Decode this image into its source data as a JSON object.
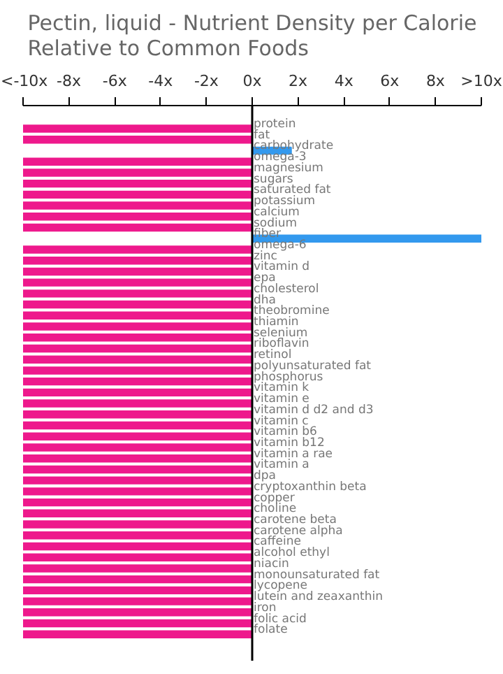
{
  "chart_data": {
    "type": "bar",
    "orientation": "horizontal",
    "title": "Pectin, liquid - Nutrient Density per Calorie\nRelative to Common Foods",
    "categories": [
      "protein",
      "fat",
      "carbohydrate",
      "omega-3",
      "magnesium",
      "sugars",
      "saturated fat",
      "potassium",
      "calcium",
      "sodium",
      "fiber",
      "omega-6",
      "zinc",
      "vitamin d",
      "epa",
      "cholesterol",
      "dha",
      "theobromine",
      "thiamin",
      "selenium",
      "riboflavin",
      "retinol",
      "polyunsaturated fat",
      "phosphorus",
      "vitamin k",
      "vitamin e",
      "vitamin d d2 and d3",
      "vitamin c",
      "vitamin b6",
      "vitamin b12",
      "vitamin a rae",
      "vitamin a",
      "dpa",
      "cryptoxanthin beta",
      "copper",
      "choline",
      "carotene beta",
      "carotene alpha",
      "caffeine",
      "alcohol ethyl",
      "niacin",
      "monounsaturated fat",
      "lycopene",
      "lutein and zeaxanthin",
      "iron",
      "folic acid",
      "folate"
    ],
    "values": [
      -10,
      -10,
      1.7,
      -10,
      -10,
      -10,
      -10,
      -10,
      -10,
      -10,
      10,
      -10,
      -10,
      -10,
      -10,
      -10,
      -10,
      -10,
      -10,
      -10,
      -10,
      -10,
      -10,
      -10,
      -10,
      -10,
      -10,
      -10,
      -10,
      -10,
      -10,
      -10,
      -10,
      -10,
      -10,
      -10,
      -10,
      -10,
      -10,
      -10,
      -10,
      -10,
      -10,
      -10,
      -10,
      -10,
      -10
    ],
    "colors": [
      "#ee198c",
      "#ee198c",
      "#3399ee",
      "#ee198c",
      "#ee198c",
      "#ee198c",
      "#ee198c",
      "#ee198c",
      "#ee198c",
      "#ee198c",
      "#3399ee",
      "#ee198c",
      "#ee198c",
      "#ee198c",
      "#ee198c",
      "#ee198c",
      "#ee198c",
      "#ee198c",
      "#ee198c",
      "#ee198c",
      "#ee198c",
      "#ee198c",
      "#ee198c",
      "#ee198c",
      "#ee198c",
      "#ee198c",
      "#ee198c",
      "#ee198c",
      "#ee198c",
      "#ee198c",
      "#ee198c",
      "#ee198c",
      "#ee198c",
      "#ee198c",
      "#ee198c",
      "#ee198c",
      "#ee198c",
      "#ee198c",
      "#ee198c",
      "#ee198c",
      "#ee198c",
      "#ee198c",
      "#ee198c",
      "#ee198c",
      "#ee198c",
      "#ee198c",
      "#ee198c"
    ],
    "xlim": [
      -10,
      10
    ],
    "xticks": [
      {
        "value": -10,
        "label": "<-10x"
      },
      {
        "value": -8,
        "label": "-8x"
      },
      {
        "value": -6,
        "label": "-6x"
      },
      {
        "value": -4,
        "label": "-4x"
      },
      {
        "value": -2,
        "label": "-2x"
      },
      {
        "value": 0,
        "label": "0x"
      },
      {
        "value": 2,
        "label": "2x"
      },
      {
        "value": 4,
        "label": "4x"
      },
      {
        "value": 6,
        "label": "6x"
      },
      {
        "value": 8,
        "label": "8x"
      },
      {
        "value": 10,
        "label": ">10x"
      }
    ],
    "grid": false
  }
}
